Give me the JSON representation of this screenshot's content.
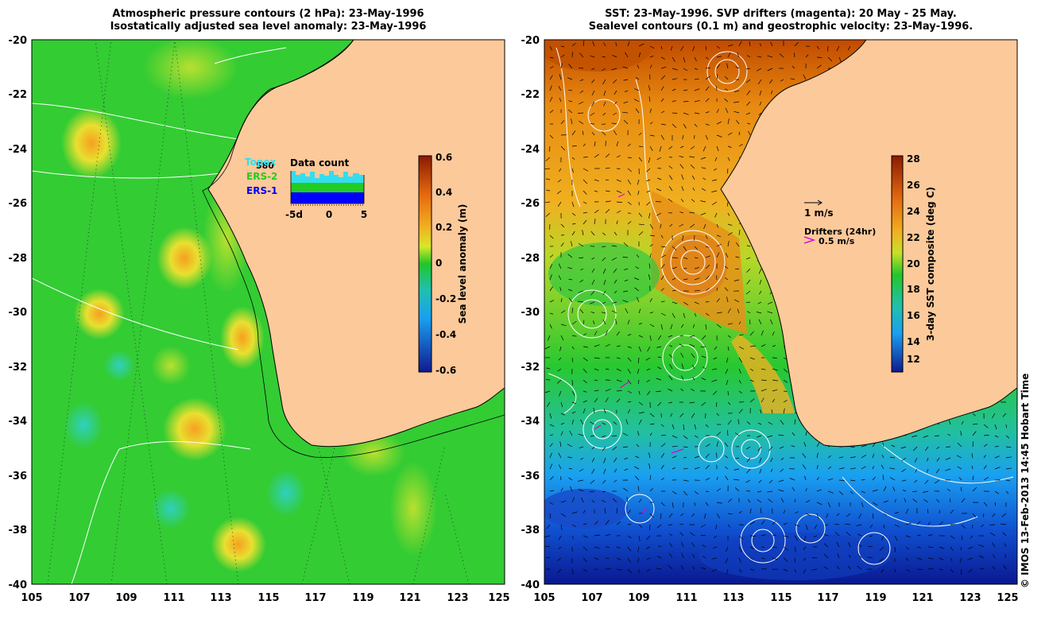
{
  "left_panel": {
    "title_line1": "Atmospheric pressure contours (2 hPa): 23-May-1996",
    "title_line2": "Isostatically adjusted sea level anomaly: 23-May-1996",
    "y_ticks": [
      "-20",
      "-22",
      "-24",
      "-26",
      "-28",
      "-30",
      "-32",
      "-34",
      "-36",
      "-38",
      "-40"
    ],
    "x_ticks": [
      "105",
      "107",
      "109",
      "111",
      "113",
      "115",
      "117",
      "119",
      "121",
      "123",
      "125"
    ],
    "colorbar": {
      "label": "Sea level anomaly (m)",
      "ticks": [
        "0.6",
        "0.4",
        "0.2",
        "0",
        "-0.2",
        "-0.4",
        "-0.6"
      ]
    },
    "inset": {
      "title": "Data count",
      "count": "580",
      "legend": [
        "Topex",
        "ERS-2",
        "ERS-1"
      ],
      "x_ticks": [
        "-5d",
        "0",
        "5"
      ],
      "colors": {
        "topex": "#33ddee",
        "ers2": "#22cc22",
        "ers1": "#0000ff"
      }
    }
  },
  "right_panel": {
    "title_line1": "SST: 23-May-1996. SVP drifters (magenta): 20 May - 25 May.",
    "title_line2": "Sealevel contours (0.1 m) and geostrophic velocity: 23-May-1996.",
    "y_ticks": [
      "-20",
      "-22",
      "-24",
      "-26",
      "-28",
      "-30",
      "-32",
      "-34",
      "-36",
      "-38",
      "-40"
    ],
    "x_ticks": [
      "105",
      "107",
      "109",
      "111",
      "113",
      "115",
      "117",
      "119",
      "121",
      "123",
      "125"
    ],
    "colorbar": {
      "label": "3-day SST composite (deg C)",
      "ticks": [
        "28",
        "26",
        "24",
        "22",
        "20",
        "18",
        "16",
        "14",
        "12"
      ]
    },
    "velocity_label": "1 m/s",
    "drifters_label": "Drifters (24hr)",
    "drifter_speed": "0.5 m/s",
    "drifter_color": "#dd00dd"
  },
  "colors": {
    "land": "#fcc99a",
    "sea_base": "#33cc33"
  },
  "credit": "© IMOS 13-Feb-2013 14:45 Hobart Time"
}
